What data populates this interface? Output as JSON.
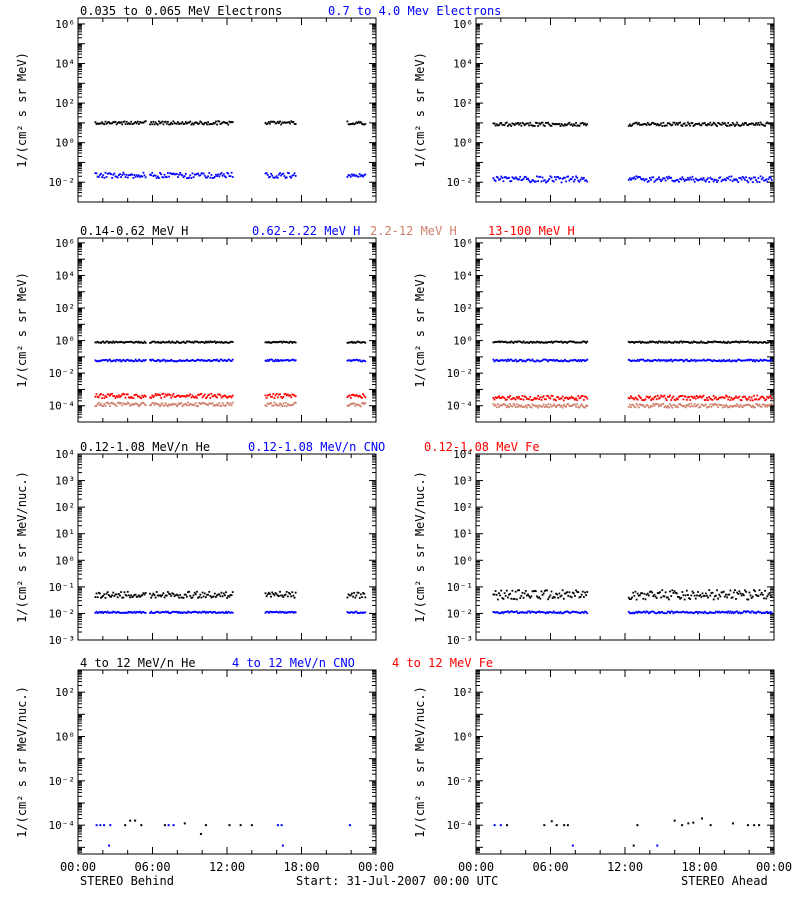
{
  "colors": {
    "black": "#000000",
    "blue": "#0000ff",
    "salmon": "#cd7f6a",
    "red": "#ff0000"
  },
  "footer": {
    "left": "STEREO Behind",
    "center": "Start: 31-Jul-2007 00:00 UTC",
    "right": "STEREO Ahead"
  },
  "x_axis": {
    "ticks": [
      "00:00",
      "06:00",
      "12:00",
      "18:00",
      "00:00"
    ]
  },
  "chart_data": [
    {
      "type": "scatter",
      "title": "",
      "scale": "log",
      "ylim": [
        0.001,
        2000000
      ],
      "ylabel": "1/(cm² s sr MeV)",
      "yticks": [
        {
          "value": 0.01,
          "label": "10⁻²"
        },
        {
          "value": 1,
          "label": "10⁰"
        },
        {
          "value": 100,
          "label": "10²"
        },
        {
          "value": 10000,
          "label": "10⁴"
        },
        {
          "value": 1000000,
          "label": "10⁶"
        }
      ],
      "xlim_hours": [
        0,
        24
      ],
      "legend": [
        "0.035 to 0.065 MeV Electrons",
        "0.7 to 4.0 Mev Electrons"
      ],
      "legend_colors": [
        "black",
        "blue"
      ],
      "panels": [
        {
          "side": "STEREO Behind",
          "series": [
            {
              "color": "black",
              "level": 10,
              "spread": 0.09,
              "segments": [
                [
                  1.4,
                  5.5
                ],
                [
                  5.8,
                  12.5
                ],
                [
                  15.1,
                  17.6
                ],
                [
                  21.7,
                  23.2
                ]
              ]
            },
            {
              "color": "blue",
              "level": 0.022,
              "spread": 0.14,
              "segments": [
                [
                  1.4,
                  5.5
                ],
                [
                  5.8,
                  12.5
                ],
                [
                  15.1,
                  17.6
                ],
                [
                  21.7,
                  23.2
                ]
              ]
            }
          ]
        },
        {
          "side": "STEREO Ahead",
          "series": [
            {
              "color": "black",
              "level": 8.5,
              "spread": 0.09,
              "segments": [
                [
                  1.4,
                  9
                ],
                [
                  12.3,
                  23.9
                ]
              ]
            },
            {
              "color": "blue",
              "level": 0.014,
              "spread": 0.16,
              "segments": [
                [
                  1.4,
                  9
                ],
                [
                  12.3,
                  23.9
                ]
              ]
            }
          ]
        }
      ]
    },
    {
      "type": "scatter",
      "title": "",
      "scale": "log",
      "ylim": [
        1e-05,
        2000000
      ],
      "ylabel": "1/(cm² s sr MeV)",
      "yticks": [
        {
          "value": 0.0001,
          "label": "10⁻⁴"
        },
        {
          "value": 0.01,
          "label": "10⁻²"
        },
        {
          "value": 1,
          "label": "10⁰"
        },
        {
          "value": 100,
          "label": "10²"
        },
        {
          "value": 10000,
          "label": "10⁴"
        },
        {
          "value": 1000000,
          "label": "10⁶"
        }
      ],
      "xlim_hours": [
        0,
        24
      ],
      "legend": [
        "0.14-0.62 MeV H",
        "0.62-2.22 MeV H",
        "2.2-12 MeV H",
        "13-100 MeV H"
      ],
      "legend_colors": [
        "black",
        "blue",
        "salmon",
        "red"
      ],
      "panels": [
        {
          "side": "STEREO Behind",
          "series": [
            {
              "color": "black",
              "level": 0.8,
              "spread": 0.05,
              "segments": [
                [
                  1.4,
                  5.5
                ],
                [
                  5.8,
                  12.5
                ],
                [
                  15.1,
                  17.6
                ],
                [
                  21.7,
                  23.2
                ]
              ]
            },
            {
              "color": "blue",
              "level": 0.06,
              "spread": 0.06,
              "segments": [
                [
                  1.4,
                  5.5
                ],
                [
                  5.8,
                  12.5
                ],
                [
                  15.1,
                  17.6
                ],
                [
                  21.7,
                  23.2
                ]
              ]
            },
            {
              "color": "salmon",
              "level": 0.00012,
              "spread": 0.12,
              "segments": [
                [
                  1.4,
                  5.5
                ],
                [
                  5.8,
                  12.5
                ],
                [
                  15.1,
                  17.6
                ],
                [
                  21.7,
                  23.2
                ]
              ]
            },
            {
              "color": "red",
              "level": 0.0004,
              "spread": 0.14,
              "segments": [
                [
                  1.4,
                  5.5
                ],
                [
                  5.8,
                  12.5
                ],
                [
                  15.1,
                  17.6
                ],
                [
                  21.7,
                  23.2
                ]
              ]
            }
          ]
        },
        {
          "side": "STEREO Ahead",
          "series": [
            {
              "color": "black",
              "level": 0.8,
              "spread": 0.05,
              "segments": [
                [
                  1.4,
                  9
                ],
                [
                  12.3,
                  23.9
                ]
              ]
            },
            {
              "color": "blue",
              "level": 0.06,
              "spread": 0.06,
              "segments": [
                [
                  1.4,
                  9
                ],
                [
                  12.3,
                  23.9
                ]
              ]
            },
            {
              "color": "salmon",
              "level": 0.0001,
              "spread": 0.12,
              "segments": [
                [
                  1.4,
                  9
                ],
                [
                  12.3,
                  23.9
                ]
              ]
            },
            {
              "color": "red",
              "level": 0.0003,
              "spread": 0.15,
              "segments": [
                [
                  1.4,
                  9
                ],
                [
                  12.3,
                  23.9
                ]
              ]
            }
          ]
        }
      ]
    },
    {
      "type": "scatter",
      "title": "",
      "scale": "log",
      "ylim": [
        0.001,
        10000
      ],
      "ylabel": "1/(cm² s sr MeV/nuc.)",
      "yticks": [
        {
          "value": 0.001,
          "label": "10⁻³"
        },
        {
          "value": 0.01,
          "label": "10⁻²"
        },
        {
          "value": 0.1,
          "label": "10⁻¹"
        },
        {
          "value": 1,
          "label": "10⁰"
        },
        {
          "value": 10,
          "label": "10¹"
        },
        {
          "value": 100,
          "label": "10²"
        },
        {
          "value": 1000,
          "label": "10³"
        },
        {
          "value": 10000,
          "label": "10⁴"
        }
      ],
      "xlim_hours": [
        0,
        24
      ],
      "legend": [
        "0.12-1.08 MeV/n He",
        "0.12-1.08 MeV/n CNO",
        "0.12-1.08 MeV Fe"
      ],
      "legend_colors": [
        "black",
        "blue",
        "red"
      ],
      "panels": [
        {
          "side": "STEREO Behind",
          "series": [
            {
              "color": "black",
              "level": 0.05,
              "spread": 0.12,
              "segments": [
                [
                  1.4,
                  5.5
                ],
                [
                  5.8,
                  12.5
                ],
                [
                  15.1,
                  17.6
                ],
                [
                  21.7,
                  23.2
                ]
              ]
            },
            {
              "color": "blue",
              "level": 0.011,
              "spread": 0.03,
              "segments": [
                [
                  1.4,
                  5.5
                ],
                [
                  5.8,
                  12.5
                ],
                [
                  15.1,
                  17.6
                ],
                [
                  21.7,
                  23.2
                ]
              ]
            }
          ]
        },
        {
          "side": "STEREO Ahead",
          "series": [
            {
              "color": "black",
              "level": 0.05,
              "spread": 0.18,
              "segments": [
                [
                  1.4,
                  9
                ],
                [
                  12.3,
                  23.9
                ]
              ]
            },
            {
              "color": "blue",
              "level": 0.011,
              "spread": 0.04,
              "segments": [
                [
                  1.4,
                  9
                ],
                [
                  12.3,
                  23.9
                ]
              ]
            }
          ]
        }
      ]
    },
    {
      "type": "scatter",
      "title": "",
      "scale": "log",
      "ylim": [
        5e-06,
        1000
      ],
      "ylabel": "1/(cm² s sr MeV/nuc.)",
      "yticks": [
        {
          "value": 0.0001,
          "label": "10⁻⁴"
        },
        {
          "value": 0.01,
          "label": "10⁻²"
        },
        {
          "value": 1,
          "label": "10⁰"
        },
        {
          "value": 100,
          "label": "10²"
        }
      ],
      "xlim_hours": [
        0,
        24
      ],
      "legend": [
        "4 to 12 MeV/n He",
        "4 to 12 MeV/n CNO",
        "4 to 12 MeV Fe"
      ],
      "legend_colors": [
        "black",
        "blue",
        "red"
      ],
      "panels": [
        {
          "side": "STEREO Behind",
          "points": [
            {
              "color": "blue",
              "x": 1.5,
              "y": 0.0001
            },
            {
              "color": "blue",
              "x": 1.8,
              "y": 0.0001
            },
            {
              "color": "blue",
              "x": 2.1,
              "y": 0.0001
            },
            {
              "color": "blue",
              "x": 2.6,
              "y": 0.0001
            },
            {
              "color": "blue",
              "x": 2.5,
              "y": 1.2e-05
            },
            {
              "color": "black",
              "x": 3.8,
              "y": 0.0001
            },
            {
              "color": "black",
              "x": 4.2,
              "y": 0.00016
            },
            {
              "color": "black",
              "x": 4.6,
              "y": 0.00016
            },
            {
              "color": "black",
              "x": 5.1,
              "y": 0.0001
            },
            {
              "color": "black",
              "x": 7.0,
              "y": 0.0001
            },
            {
              "color": "blue",
              "x": 7.3,
              "y": 0.0001
            },
            {
              "color": "blue",
              "x": 7.7,
              "y": 0.0001
            },
            {
              "color": "black",
              "x": 8.6,
              "y": 0.00012
            },
            {
              "color": "black",
              "x": 9.9,
              "y": 4e-05
            },
            {
              "color": "black",
              "x": 10.3,
              "y": 0.0001
            },
            {
              "color": "black",
              "x": 12.2,
              "y": 0.0001
            },
            {
              "color": "black",
              "x": 13.1,
              "y": 0.0001
            },
            {
              "color": "black",
              "x": 14.0,
              "y": 0.0001
            },
            {
              "color": "blue",
              "x": 16.1,
              "y": 0.0001
            },
            {
              "color": "blue",
              "x": 16.4,
              "y": 0.0001
            },
            {
              "color": "blue",
              "x": 16.5,
              "y": 1.2e-05
            },
            {
              "color": "blue",
              "x": 21.9,
              "y": 0.0001
            }
          ]
        },
        {
          "side": "STEREO Ahead",
          "points": [
            {
              "color": "blue",
              "x": 1.5,
              "y": 0.0001
            },
            {
              "color": "blue",
              "x": 2.0,
              "y": 0.0001
            },
            {
              "color": "black",
              "x": 2.5,
              "y": 0.0001
            },
            {
              "color": "black",
              "x": 5.5,
              "y": 0.0001
            },
            {
              "color": "black",
              "x": 6.1,
              "y": 0.00015
            },
            {
              "color": "black",
              "x": 6.5,
              "y": 0.0001
            },
            {
              "color": "black",
              "x": 7.1,
              "y": 0.0001
            },
            {
              "color": "black",
              "x": 7.4,
              "y": 0.0001
            },
            {
              "color": "blue",
              "x": 7.8,
              "y": 1.2e-05
            },
            {
              "color": "black",
              "x": 12.7,
              "y": 1.2e-05
            },
            {
              "color": "black",
              "x": 13.0,
              "y": 0.0001
            },
            {
              "color": "blue",
              "x": 14.6,
              "y": 1.2e-05
            },
            {
              "color": "black",
              "x": 16.0,
              "y": 0.00016
            },
            {
              "color": "black",
              "x": 16.6,
              "y": 0.0001
            },
            {
              "color": "black",
              "x": 17.1,
              "y": 0.00012
            },
            {
              "color": "black",
              "x": 17.5,
              "y": 0.00013
            },
            {
              "color": "black",
              "x": 18.2,
              "y": 0.0002
            },
            {
              "color": "black",
              "x": 18.9,
              "y": 0.0001
            },
            {
              "color": "black",
              "x": 20.7,
              "y": 0.00012
            },
            {
              "color": "black",
              "x": 21.9,
              "y": 0.0001
            },
            {
              "color": "black",
              "x": 22.4,
              "y": 0.0001
            },
            {
              "color": "black",
              "x": 22.8,
              "y": 0.0001
            }
          ]
        }
      ]
    }
  ]
}
